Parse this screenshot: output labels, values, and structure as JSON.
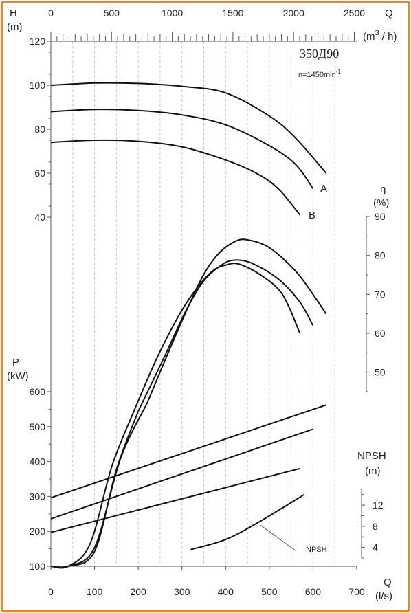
{
  "chart_data": {
    "type": "line",
    "title": "350Д90",
    "subtitle": "n=1450min",
    "subtitle_sup": "-1",
    "x_bottom": {
      "label": "Q",
      "unit": "(l/s)",
      "range": [
        0,
        700
      ],
      "ticks": [
        "0",
        "100",
        "200",
        "300",
        "400",
        "500",
        "600",
        "700"
      ]
    },
    "x_top": {
      "label": "Q",
      "unit_base": "(m",
      "unit_sup": "3",
      "unit_tail": " / h)",
      "range": [
        0,
        2520
      ],
      "ticks": [
        "0",
        "500",
        "1000",
        "1500",
        "2000",
        "2500"
      ]
    },
    "head_axis": {
      "label": "H",
      "unit": "(m)",
      "range": [
        40,
        120
      ],
      "ticks": [
        "40",
        "60",
        "80",
        "100",
        "120"
      ]
    },
    "eff_axis": {
      "label": "η",
      "unit": "(%)",
      "range": [
        45,
        90
      ],
      "ticks": [
        "50",
        "60",
        "70",
        "80",
        "90"
      ]
    },
    "power_axis": {
      "label": "P",
      "unit": "(kW)",
      "range": [
        100,
        600
      ],
      "ticks": [
        "100",
        "200",
        "300",
        "400",
        "500",
        "600"
      ]
    },
    "npsh_axis": {
      "label": "NPSH",
      "unit": "(m)",
      "range": [
        2,
        15
      ],
      "ticks": [
        "4",
        "8",
        "12"
      ]
    },
    "curve_labels": {
      "A": "A",
      "B": "B",
      "npsh": "NPSH"
    },
    "head_curves": [
      {
        "points": [
          [
            0,
            100
          ],
          [
            100,
            101
          ],
          [
            200,
            100.8
          ],
          [
            300,
            99.5
          ],
          [
            400,
            96.5
          ],
          [
            500,
            86
          ],
          [
            560,
            76
          ],
          [
            630,
            60
          ]
        ]
      },
      {
        "points": [
          [
            0,
            88
          ],
          [
            100,
            89
          ],
          [
            200,
            88.5
          ],
          [
            300,
            86.5
          ],
          [
            400,
            82
          ],
          [
            500,
            72.5
          ],
          [
            560,
            64
          ],
          [
            600,
            53
          ]
        ]
      },
      {
        "points": [
          [
            0,
            74
          ],
          [
            100,
            75
          ],
          [
            200,
            74.5
          ],
          [
            300,
            72
          ],
          [
            400,
            66
          ],
          [
            470,
            60
          ],
          [
            520,
            53
          ],
          [
            570,
            41
          ]
        ]
      }
    ],
    "efficiency_curves": [
      {
        "points": [
          [
            220,
            42
          ],
          [
            280,
            58
          ],
          [
            340,
            73
          ],
          [
            380,
            80
          ],
          [
            420,
            83.5
          ],
          [
            450,
            84
          ],
          [
            500,
            82
          ],
          [
            560,
            76
          ],
          [
            600,
            70
          ],
          [
            630,
            65
          ]
        ]
      },
      {
        "points": [
          [
            200,
            40
          ],
          [
            260,
            54
          ],
          [
            310,
            66
          ],
          [
            350,
            73.5
          ],
          [
            390,
            77.5
          ],
          [
            420,
            78.8
          ],
          [
            460,
            78
          ],
          [
            520,
            74
          ],
          [
            570,
            68
          ],
          [
            600,
            62
          ]
        ]
      },
      {
        "points": [
          [
            190,
            40
          ],
          [
            240,
            53
          ],
          [
            290,
            64
          ],
          [
            330,
            71
          ],
          [
            370,
            76
          ],
          [
            400,
            77.5
          ],
          [
            430,
            77.8
          ],
          [
            480,
            75
          ],
          [
            530,
            70
          ],
          [
            570,
            60
          ]
        ]
      }
    ],
    "power_curves": [
      {
        "points": [
          [
            0,
            296
          ],
          [
            630,
            562
          ]
        ]
      },
      {
        "points": [
          [
            0,
            236
          ],
          [
            600,
            493
          ]
        ]
      },
      {
        "points": [
          [
            0,
            197
          ],
          [
            570,
            380
          ]
        ]
      }
    ],
    "npsh_curve": {
      "points": [
        [
          320,
          3.6
        ],
        [
          400,
          5.5
        ],
        [
          480,
          9
        ],
        [
          580,
          14
        ]
      ]
    }
  }
}
